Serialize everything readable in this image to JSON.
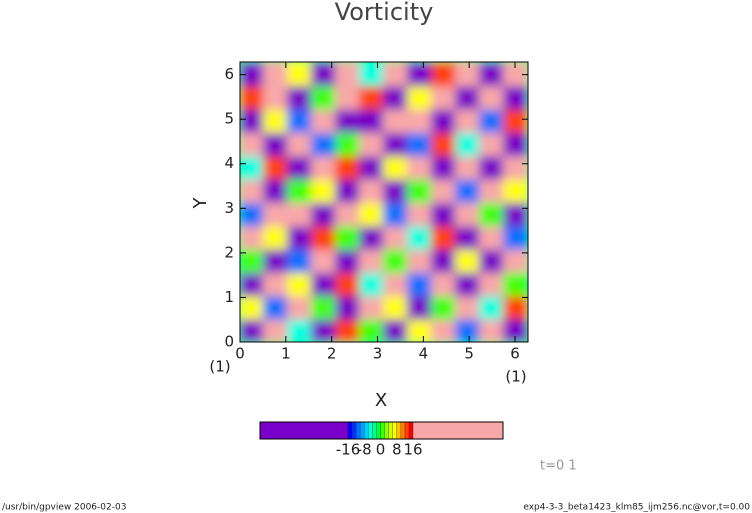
{
  "chart_data": {
    "type": "contour",
    "title": "Vorticity",
    "x_label": "X",
    "y_label": "Y",
    "xlim": [
      0,
      6.2832
    ],
    "ylim": [
      0,
      6.2832
    ],
    "xticks": [
      0,
      1,
      2,
      3,
      4,
      5,
      6
    ],
    "yticks": [
      0,
      1,
      2,
      3,
      4,
      5,
      6
    ],
    "x_unit": "(1)",
    "y_unit": "(1)",
    "z": [
      [
        -20,
        20,
        -6,
        -20,
        12,
        0,
        -20,
        6,
        20,
        -12,
        20,
        -20
      ],
      [
        6,
        -12,
        20,
        0,
        -20,
        20,
        6,
        -20,
        0,
        20,
        -6,
        12
      ],
      [
        -20,
        20,
        6,
        -20,
        12,
        -6,
        20,
        -12,
        20,
        -20,
        20,
        0
      ],
      [
        0,
        -20,
        -12,
        20,
        -20,
        20,
        0,
        20,
        -20,
        6,
        -20,
        20
      ],
      [
        20,
        6,
        -20,
        12,
        0,
        -20,
        20,
        -6,
        12,
        -20,
        20,
        -12
      ],
      [
        -12,
        20,
        20,
        -20,
        20,
        6,
        -12,
        20,
        -20,
        20,
        0,
        -20
      ],
      [
        20,
        -20,
        0,
        6,
        -20,
        20,
        -20,
        0,
        20,
        -12,
        20,
        6
      ],
      [
        -6,
        12,
        -20,
        20,
        12,
        -20,
        6,
        20,
        -20,
        20,
        -20,
        20
      ],
      [
        20,
        -20,
        20,
        -12,
        0,
        20,
        -20,
        -12,
        12,
        -6,
        20,
        -20
      ],
      [
        -20,
        6,
        -12,
        20,
        -20,
        -20,
        20,
        20,
        -20,
        20,
        -12,
        12
      ],
      [
        12,
        20,
        -20,
        0,
        20,
        12,
        -20,
        6,
        20,
        -20,
        20,
        -20
      ],
      [
        -20,
        20,
        6,
        -20,
        20,
        -6,
        20,
        -20,
        12,
        20,
        -20,
        20
      ]
    ],
    "colorbar": {
      "levels": [
        -16,
        -14,
        -12,
        -10,
        -8,
        -6,
        -4,
        -2,
        0,
        2,
        4,
        6,
        8,
        10,
        12,
        14,
        16
      ],
      "ticks": [
        -16,
        -8,
        0,
        8,
        16
      ],
      "colors": [
        "#7800c8",
        "#0000ff",
        "#0030ff",
        "#0070ff",
        "#00a0ff",
        "#00d0ff",
        "#00ffe0",
        "#00ff90",
        "#00ff40",
        "#40ff00",
        "#90ff00",
        "#d0ff00",
        "#ffff00",
        "#ffc000",
        "#ff8000",
        "#ff4000",
        "#ff0000",
        "#f8a8a8"
      ]
    },
    "annotation": "t=0 1",
    "footer_left": "/usr/bin/gpview  2006-02-03",
    "footer_right": "exp4-3-3_beta1423_klm85_ijm256.nc@vor,t=0.00"
  }
}
